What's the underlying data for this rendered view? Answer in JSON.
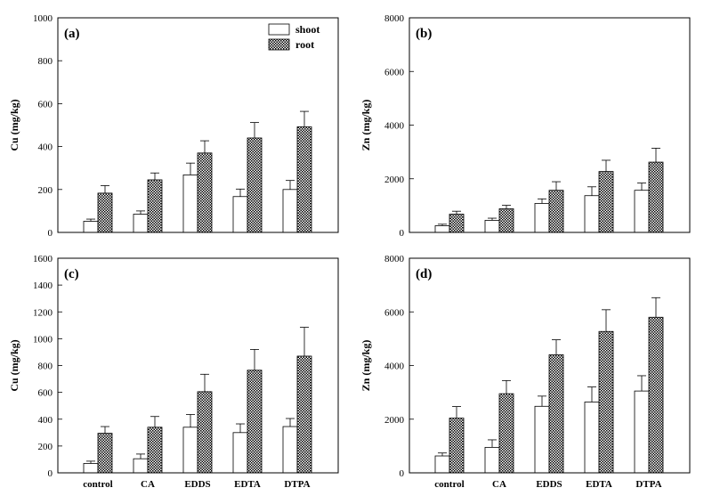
{
  "chart_data": [
    {
      "type": "bar",
      "panel_label": "(a)",
      "ylabel": "Cu (mg/kg)",
      "ylim": [
        0,
        1000
      ],
      "yticks": [
        0,
        200,
        400,
        600,
        800,
        1000
      ],
      "categories": [
        "control",
        "CA",
        "EDDS",
        "EDTA",
        "DTPA"
      ],
      "show_category_labels": false,
      "legend": true,
      "legend_position": "top-right",
      "series": [
        {
          "name": "shoot",
          "pattern": "white",
          "values": [
            52,
            85,
            268,
            167,
            200
          ],
          "errors": [
            10,
            15,
            55,
            35,
            42
          ]
        },
        {
          "name": "root",
          "pattern": "crosshatch",
          "values": [
            183,
            245,
            370,
            440,
            492
          ],
          "errors": [
            35,
            32,
            57,
            72,
            72
          ]
        }
      ]
    },
    {
      "type": "bar",
      "panel_label": "(b)",
      "ylabel": "Zn (mg/kg)",
      "ylim": [
        0,
        8000
      ],
      "yticks": [
        0,
        2000,
        4000,
        6000,
        8000
      ],
      "categories": [
        "control",
        "CA",
        "EDDS",
        "EDTA",
        "DTPA"
      ],
      "show_category_labels": false,
      "legend": false,
      "series": [
        {
          "name": "shoot",
          "pattern": "white",
          "values": [
            250,
            450,
            1080,
            1370,
            1570
          ],
          "errors": [
            55,
            80,
            170,
            330,
            270
          ]
        },
        {
          "name": "root",
          "pattern": "crosshatch",
          "values": [
            680,
            880,
            1570,
            2270,
            2620
          ],
          "errors": [
            110,
            130,
            320,
            420,
            520
          ]
        }
      ]
    },
    {
      "type": "bar",
      "panel_label": "(c)",
      "ylabel": "Cu (mg/kg)",
      "ylim": [
        0,
        1600
      ],
      "yticks": [
        0,
        200,
        400,
        600,
        800,
        1000,
        1200,
        1400,
        1600
      ],
      "categories": [
        "control",
        "CA",
        "EDDS",
        "EDTA",
        "DTPA"
      ],
      "show_category_labels": true,
      "legend": false,
      "series": [
        {
          "name": "shoot",
          "pattern": "white",
          "values": [
            70,
            105,
            340,
            300,
            345
          ],
          "errors": [
            17,
            35,
            95,
            65,
            60
          ]
        },
        {
          "name": "root",
          "pattern": "crosshatch",
          "values": [
            295,
            340,
            605,
            765,
            870
          ],
          "errors": [
            50,
            80,
            130,
            155,
            215
          ]
        }
      ]
    },
    {
      "type": "bar",
      "panel_label": "(d)",
      "ylabel": "Zn (mg/kg)",
      "ylim": [
        0,
        8000
      ],
      "yticks": [
        0,
        2000,
        4000,
        6000,
        8000
      ],
      "categories": [
        "control",
        "CA",
        "EDDS",
        "EDTA",
        "DTPA"
      ],
      "show_category_labels": true,
      "legend": false,
      "series": [
        {
          "name": "shoot",
          "pattern": "white",
          "values": [
            630,
            950,
            2480,
            2640,
            3050
          ],
          "errors": [
            110,
            280,
            380,
            560,
            570
          ]
        },
        {
          "name": "root",
          "pattern": "crosshatch",
          "values": [
            2040,
            2950,
            4400,
            5270,
            5800
          ],
          "errors": [
            430,
            490,
            560,
            810,
            730
          ]
        }
      ]
    }
  ]
}
